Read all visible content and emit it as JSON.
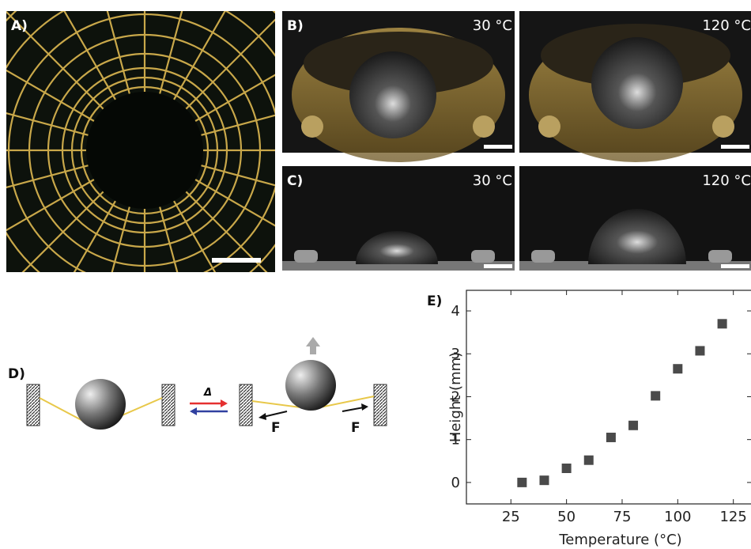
{
  "panels": {
    "a": {
      "label": "A)"
    },
    "b": {
      "label": "B)",
      "temperatures": [
        "30 °C",
        "120 °C"
      ]
    },
    "c": {
      "label": "C)",
      "temperatures": [
        "30 °C",
        "120 °C"
      ]
    },
    "d": {
      "label": "D)",
      "heat_symbol": "Δ",
      "forces": [
        "F",
        "F"
      ]
    },
    "e": {
      "label": "E)"
    }
  },
  "chart_data": {
    "type": "scatter",
    "xlabel": "Temperature (°C)",
    "ylabel": "Height (mm)",
    "x": [
      30,
      40,
      50,
      60,
      70,
      80,
      90,
      100,
      110,
      120
    ],
    "values": [
      0,
      0.05,
      0.33,
      0.52,
      1.05,
      1.33,
      2.02,
      2.65,
      3.07,
      3.7
    ],
    "color": "#4a4a4a",
    "xlim": [
      5,
      134
    ],
    "ylim": [
      -0.5,
      4.48
    ],
    "xticks": [
      25,
      50,
      75,
      100,
      125
    ],
    "yticks": [
      0,
      1,
      2,
      3,
      4
    ]
  }
}
